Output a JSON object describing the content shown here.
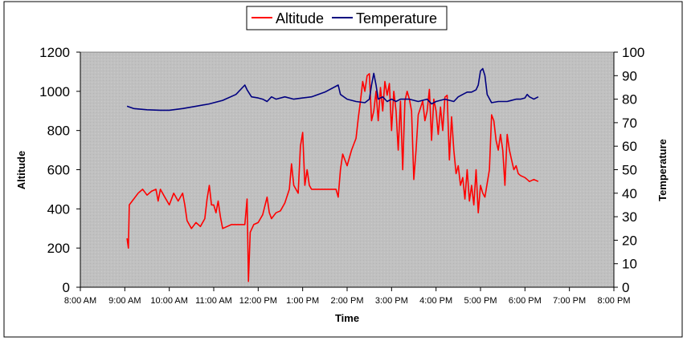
{
  "chart_data": {
    "type": "line",
    "title": "",
    "xlabel": "Time",
    "ylabel_left": "Altitude",
    "ylabel_right": "Temperature",
    "x_unit": "hours since midnight",
    "xlim": [
      8,
      20
    ],
    "ylim_left": [
      0,
      1200
    ],
    "ylim_right": [
      0,
      100
    ],
    "x_ticks": [
      {
        "value": 8,
        "label": "8:00 AM"
      },
      {
        "value": 9,
        "label": "9:00 AM"
      },
      {
        "value": 10,
        "label": "10:00 AM"
      },
      {
        "value": 11,
        "label": "11:00 AM"
      },
      {
        "value": 12,
        "label": "12:00 PM"
      },
      {
        "value": 13,
        "label": "1:00 PM"
      },
      {
        "value": 14,
        "label": "2:00 PM"
      },
      {
        "value": 15,
        "label": "3:00 PM"
      },
      {
        "value": 16,
        "label": "4:00 PM"
      },
      {
        "value": 17,
        "label": "5:00 PM"
      },
      {
        "value": 18,
        "label": "6:00 PM"
      },
      {
        "value": 19,
        "label": "7:00 PM"
      },
      {
        "value": 20,
        "label": "8:00 PM"
      }
    ],
    "y_ticks_left": [
      0,
      200,
      400,
      600,
      800,
      1000,
      1200
    ],
    "y_ticks_right": [
      0,
      10,
      20,
      30,
      40,
      50,
      60,
      70,
      80,
      90,
      100
    ],
    "gridlines": false,
    "legend": "top-center",
    "plot_background": "#c0c0c0",
    "series": [
      {
        "name": "Altitude",
        "axis": "left",
        "color": "#ff0000",
        "points": [
          [
            9.05,
            250
          ],
          [
            9.08,
            200
          ],
          [
            9.1,
            420
          ],
          [
            9.2,
            450
          ],
          [
            9.3,
            480
          ],
          [
            9.4,
            500
          ],
          [
            9.5,
            470
          ],
          [
            9.6,
            490
          ],
          [
            9.7,
            500
          ],
          [
            9.75,
            440
          ],
          [
            9.8,
            500
          ],
          [
            9.9,
            460
          ],
          [
            10.0,
            420
          ],
          [
            10.1,
            480
          ],
          [
            10.2,
            440
          ],
          [
            10.3,
            480
          ],
          [
            10.35,
            420
          ],
          [
            10.4,
            340
          ],
          [
            10.5,
            300
          ],
          [
            10.6,
            330
          ],
          [
            10.7,
            310
          ],
          [
            10.8,
            350
          ],
          [
            10.85,
            450
          ],
          [
            10.9,
            520
          ],
          [
            10.95,
            420
          ],
          [
            11.0,
            420
          ],
          [
            11.05,
            380
          ],
          [
            11.1,
            440
          ],
          [
            11.15,
            360
          ],
          [
            11.2,
            300
          ],
          [
            11.3,
            310
          ],
          [
            11.4,
            320
          ],
          [
            11.5,
            320
          ],
          [
            11.6,
            320
          ],
          [
            11.7,
            320
          ],
          [
            11.75,
            450
          ],
          [
            11.78,
            30
          ],
          [
            11.82,
            280
          ],
          [
            11.9,
            320
          ],
          [
            12.0,
            330
          ],
          [
            12.1,
            370
          ],
          [
            12.2,
            460
          ],
          [
            12.25,
            380
          ],
          [
            12.3,
            350
          ],
          [
            12.4,
            380
          ],
          [
            12.5,
            390
          ],
          [
            12.6,
            430
          ],
          [
            12.7,
            500
          ],
          [
            12.75,
            630
          ],
          [
            12.8,
            520
          ],
          [
            12.9,
            480
          ],
          [
            12.95,
            720
          ],
          [
            13.0,
            790
          ],
          [
            13.05,
            520
          ],
          [
            13.1,
            600
          ],
          [
            13.15,
            520
          ],
          [
            13.2,
            500
          ],
          [
            13.5,
            500
          ],
          [
            13.65,
            500
          ],
          [
            13.75,
            500
          ],
          [
            13.8,
            460
          ],
          [
            13.85,
            600
          ],
          [
            13.9,
            680
          ],
          [
            14.0,
            620
          ],
          [
            14.1,
            700
          ],
          [
            14.2,
            760
          ],
          [
            14.25,
            860
          ],
          [
            14.3,
            950
          ],
          [
            14.35,
            1050
          ],
          [
            14.4,
            1000
          ],
          [
            14.45,
            1080
          ],
          [
            14.5,
            1090
          ],
          [
            14.55,
            850
          ],
          [
            14.6,
            900
          ],
          [
            14.65,
            1000
          ],
          [
            14.7,
            850
          ],
          [
            14.75,
            1020
          ],
          [
            14.8,
            900
          ],
          [
            14.85,
            1050
          ],
          [
            14.9,
            980
          ],
          [
            14.95,
            1040
          ],
          [
            15.0,
            800
          ],
          [
            15.05,
            1000
          ],
          [
            15.1,
            900
          ],
          [
            15.15,
            700
          ],
          [
            15.2,
            950
          ],
          [
            15.25,
            600
          ],
          [
            15.3,
            950
          ],
          [
            15.35,
            1000
          ],
          [
            15.4,
            960
          ],
          [
            15.45,
            900
          ],
          [
            15.5,
            550
          ],
          [
            15.55,
            700
          ],
          [
            15.6,
            880
          ],
          [
            15.7,
            950
          ],
          [
            15.75,
            850
          ],
          [
            15.8,
            900
          ],
          [
            15.85,
            1010
          ],
          [
            15.9,
            750
          ],
          [
            15.95,
            960
          ],
          [
            16.0,
            900
          ],
          [
            16.05,
            780
          ],
          [
            16.1,
            920
          ],
          [
            16.15,
            800
          ],
          [
            16.2,
            970
          ],
          [
            16.25,
            980
          ],
          [
            16.3,
            650
          ],
          [
            16.35,
            870
          ],
          [
            16.4,
            700
          ],
          [
            16.45,
            580
          ],
          [
            16.5,
            620
          ],
          [
            16.55,
            520
          ],
          [
            16.6,
            560
          ],
          [
            16.65,
            450
          ],
          [
            16.7,
            600
          ],
          [
            16.75,
            440
          ],
          [
            16.8,
            520
          ],
          [
            16.85,
            420
          ],
          [
            16.9,
            600
          ],
          [
            16.95,
            380
          ],
          [
            17.0,
            520
          ],
          [
            17.05,
            480
          ],
          [
            17.1,
            460
          ],
          [
            17.2,
            600
          ],
          [
            17.25,
            880
          ],
          [
            17.3,
            850
          ],
          [
            17.35,
            750
          ],
          [
            17.4,
            700
          ],
          [
            17.45,
            780
          ],
          [
            17.5,
            700
          ],
          [
            17.55,
            520
          ],
          [
            17.6,
            780
          ],
          [
            17.65,
            700
          ],
          [
            17.7,
            650
          ],
          [
            17.75,
            600
          ],
          [
            17.8,
            620
          ],
          [
            17.85,
            580
          ],
          [
            17.9,
            570
          ],
          [
            18.0,
            560
          ],
          [
            18.1,
            540
          ],
          [
            18.2,
            550
          ],
          [
            18.3,
            540
          ]
        ]
      },
      {
        "name": "Temperature",
        "axis": "right",
        "color": "#000080",
        "points": [
          [
            9.05,
            77
          ],
          [
            9.2,
            76
          ],
          [
            9.5,
            75.5
          ],
          [
            9.8,
            75.3
          ],
          [
            10.0,
            75.3
          ],
          [
            10.3,
            76
          ],
          [
            10.6,
            77
          ],
          [
            10.9,
            78
          ],
          [
            11.2,
            79.5
          ],
          [
            11.5,
            82
          ],
          [
            11.7,
            86
          ],
          [
            11.75,
            84
          ],
          [
            11.85,
            81
          ],
          [
            12.0,
            80.5
          ],
          [
            12.1,
            80
          ],
          [
            12.2,
            79
          ],
          [
            12.3,
            81
          ],
          [
            12.4,
            80
          ],
          [
            12.6,
            81
          ],
          [
            12.8,
            80
          ],
          [
            13.0,
            80.5
          ],
          [
            13.2,
            81
          ],
          [
            13.5,
            83
          ],
          [
            13.8,
            86
          ],
          [
            13.85,
            82
          ],
          [
            14.0,
            80
          ],
          [
            14.2,
            79
          ],
          [
            14.4,
            78.5
          ],
          [
            14.5,
            80
          ],
          [
            14.55,
            86
          ],
          [
            14.6,
            91
          ],
          [
            14.65,
            86
          ],
          [
            14.7,
            80
          ],
          [
            14.8,
            81
          ],
          [
            14.9,
            79
          ],
          [
            15.0,
            80
          ],
          [
            15.1,
            79
          ],
          [
            15.2,
            80
          ],
          [
            15.4,
            80
          ],
          [
            15.6,
            79
          ],
          [
            15.8,
            80
          ],
          [
            15.9,
            78
          ],
          [
            16.0,
            79
          ],
          [
            16.2,
            80
          ],
          [
            16.4,
            79
          ],
          [
            16.5,
            81
          ],
          [
            16.6,
            82
          ],
          [
            16.7,
            83
          ],
          [
            16.8,
            83
          ],
          [
            16.9,
            84
          ],
          [
            16.95,
            86
          ],
          [
            17.0,
            92
          ],
          [
            17.05,
            93
          ],
          [
            17.1,
            90
          ],
          [
            17.15,
            82
          ],
          [
            17.25,
            78.5
          ],
          [
            17.4,
            79
          ],
          [
            17.6,
            79
          ],
          [
            17.8,
            80
          ],
          [
            17.9,
            80
          ],
          [
            18.0,
            80.5
          ],
          [
            18.05,
            82
          ],
          [
            18.1,
            81
          ],
          [
            18.2,
            80
          ],
          [
            18.3,
            81
          ]
        ]
      }
    ]
  }
}
